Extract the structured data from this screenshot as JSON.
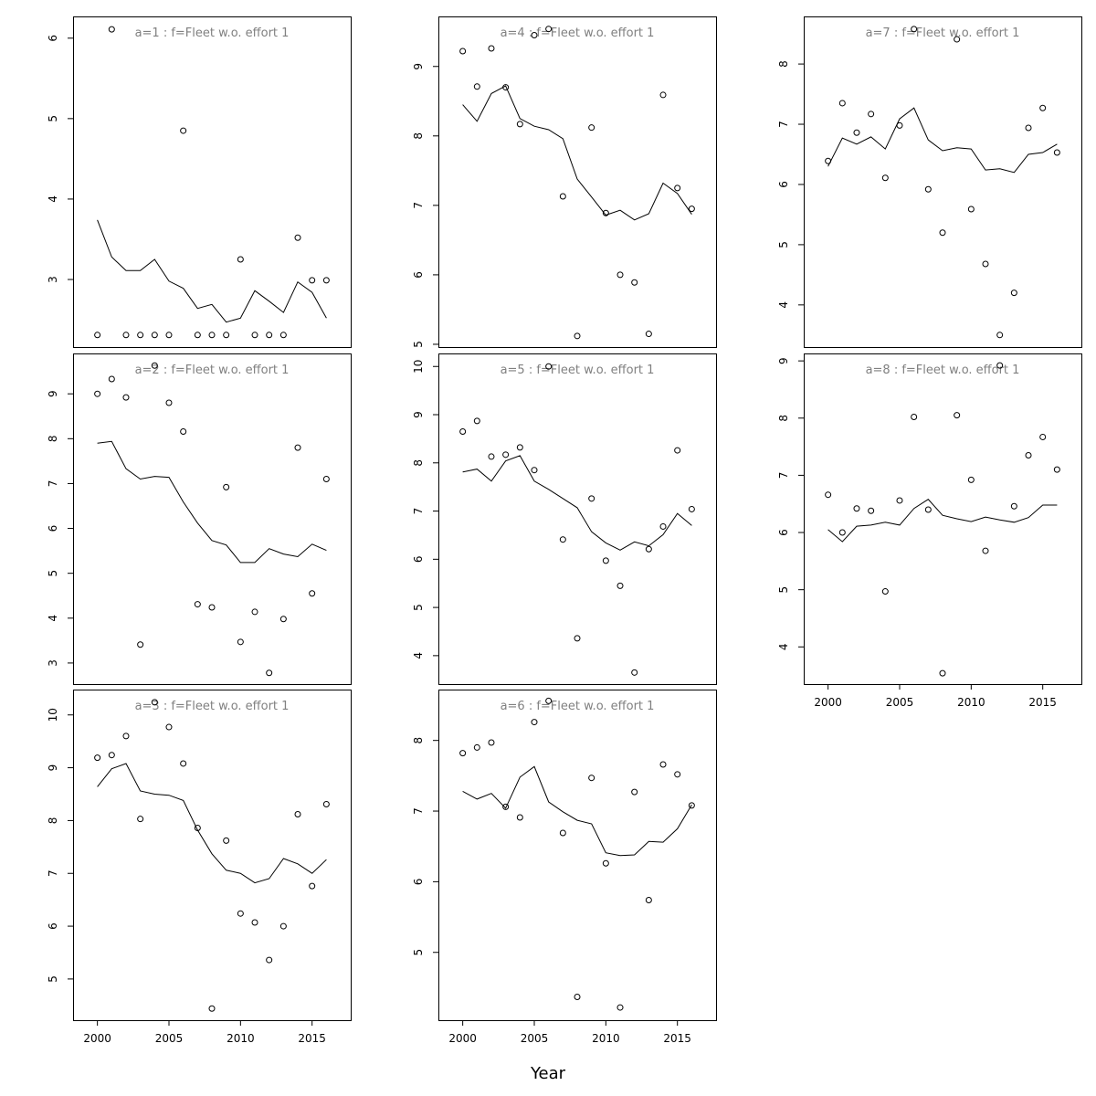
{
  "chart_data": {
    "type": "scatter",
    "xlabel": "Year",
    "x": [
      2000,
      2001,
      2002,
      2003,
      2004,
      2005,
      2006,
      2007,
      2008,
      2009,
      2010,
      2011,
      2012,
      2013,
      2014,
      2015,
      2016
    ],
    "xlim": [
      1998.3,
      2017.7
    ],
    "xticks": [
      2000,
      2005,
      2010,
      2015
    ],
    "panels": [
      {
        "title": "a=1  :  f=Fleet w.o. effort 1",
        "ylim": [
          2.16,
          6.27
        ],
        "yticks": [
          3,
          4,
          5,
          6
        ],
        "points": [
          2.31,
          6.11,
          2.31,
          2.31,
          2.31,
          2.31,
          4.85,
          2.31,
          2.31,
          2.31,
          3.25,
          2.31,
          2.31,
          2.31,
          3.52,
          2.99,
          2.99
        ],
        "fitted": [
          3.74,
          3.28,
          3.11,
          3.11,
          3.25,
          2.98,
          2.89,
          2.64,
          2.69,
          2.47,
          2.52,
          2.86,
          2.73,
          2.59,
          2.97,
          2.84,
          2.52
        ]
      },
      {
        "title": "a=2  :  f=Fleet w.o. effort 1",
        "ylim": [
          2.53,
          9.9
        ],
        "yticks": [
          3,
          4,
          5,
          6,
          7,
          8,
          9
        ],
        "points": [
          9.0,
          9.33,
          8.92,
          3.41,
          9.63,
          8.8,
          8.16,
          4.31,
          4.24,
          6.92,
          3.47,
          4.14,
          2.78,
          3.98,
          7.8,
          4.55,
          7.1
        ],
        "fitted": [
          7.9,
          7.94,
          7.33,
          7.1,
          7.16,
          7.14,
          6.59,
          6.12,
          5.73,
          5.63,
          5.24,
          5.24,
          5.55,
          5.43,
          5.37,
          5.65,
          5.51
        ]
      },
      {
        "title": "a=3  :  f=Fleet w.o. effort 1",
        "ylim": [
          4.22,
          10.48
        ],
        "yticks": [
          5,
          6,
          7,
          8,
          9,
          10
        ],
        "points": [
          9.19,
          9.24,
          9.6,
          8.03,
          10.24,
          9.77,
          9.08,
          7.86,
          4.44,
          7.62,
          6.24,
          6.07,
          5.36,
          6.0,
          8.12,
          6.76,
          8.31
        ],
        "fitted": [
          8.64,
          8.98,
          9.08,
          8.56,
          8.5,
          8.48,
          8.38,
          7.82,
          7.37,
          7.06,
          7.0,
          6.82,
          6.9,
          7.28,
          7.18,
          7.0,
          7.26
        ]
      },
      {
        "title": "a=4  :  f=Fleet w.o. effort 1",
        "ylim": [
          4.96,
          9.72
        ],
        "yticks": [
          5,
          6,
          7,
          8,
          9
        ],
        "points": [
          9.22,
          8.71,
          9.26,
          8.7,
          8.17,
          9.45,
          9.54,
          7.13,
          5.12,
          8.12,
          6.89,
          6.0,
          5.89,
          5.15,
          8.59,
          7.25,
          6.95
        ],
        "fitted": [
          8.45,
          8.21,
          8.61,
          8.72,
          8.25,
          8.14,
          8.09,
          7.96,
          7.38,
          7.12,
          6.86,
          6.93,
          6.79,
          6.88,
          7.32,
          7.17,
          6.87
        ]
      },
      {
        "title": "a=5  :  f=Fleet w.o. effort 1",
        "ylim": [
          3.41,
          10.27
        ],
        "yticks": [
          4,
          5,
          6,
          7,
          8,
          9,
          10
        ],
        "points": [
          8.65,
          8.87,
          8.13,
          8.17,
          8.32,
          7.85,
          10.0,
          6.41,
          4.36,
          7.26,
          5.97,
          5.45,
          3.65,
          6.21,
          6.68,
          8.26,
          7.04
        ],
        "fitted": [
          7.81,
          7.87,
          7.62,
          8.04,
          8.15,
          7.62,
          7.45,
          7.26,
          7.07,
          6.57,
          6.34,
          6.19,
          6.36,
          6.28,
          6.51,
          6.95,
          6.7
        ]
      },
      {
        "title": "a=6  :  f=Fleet w.o. effort 1",
        "ylim": [
          4.04,
          8.72
        ],
        "yticks": [
          5,
          6,
          7,
          8
        ],
        "points": [
          7.82,
          7.9,
          7.97,
          7.06,
          6.91,
          8.26,
          8.56,
          6.69,
          4.37,
          7.47,
          6.26,
          4.22,
          7.27,
          5.74,
          7.66,
          7.52,
          7.08
        ],
        "fitted": [
          7.28,
          7.17,
          7.25,
          7.04,
          7.48,
          7.63,
          7.13,
          6.99,
          6.87,
          6.82,
          6.41,
          6.37,
          6.38,
          6.57,
          6.56,
          6.75,
          7.09
        ]
      },
      {
        "title": "a=7  :  f=Fleet w.o. effort 1",
        "ylim": [
          3.3,
          8.79
        ],
        "yticks": [
          4,
          5,
          6,
          7,
          8
        ],
        "points": [
          6.39,
          7.35,
          6.86,
          7.17,
          6.11,
          6.98,
          8.58,
          5.92,
          5.2,
          8.41,
          5.59,
          4.68,
          3.5,
          4.2,
          6.94,
          7.27,
          6.53
        ],
        "fitted": [
          6.3,
          6.77,
          6.67,
          6.79,
          6.59,
          7.09,
          7.27,
          6.74,
          6.56,
          6.61,
          6.59,
          6.24,
          6.26,
          6.2,
          6.5,
          6.53,
          6.67
        ]
      },
      {
        "title": "a=8  :  f=Fleet w.o. effort 1",
        "ylim": [
          3.35,
          9.13
        ],
        "yticks": [
          4,
          5,
          6,
          7,
          8,
          9
        ],
        "points": [
          6.66,
          6.0,
          6.42,
          6.38,
          4.97,
          6.56,
          8.02,
          6.4,
          3.54,
          8.05,
          6.92,
          5.68,
          8.92,
          6.46,
          7.35,
          7.67,
          7.1
        ],
        "fitted": [
          6.05,
          5.84,
          6.11,
          6.13,
          6.18,
          6.13,
          6.42,
          6.58,
          6.3,
          6.24,
          6.19,
          6.27,
          6.22,
          6.18,
          6.26,
          6.48,
          6.48
        ]
      }
    ]
  }
}
